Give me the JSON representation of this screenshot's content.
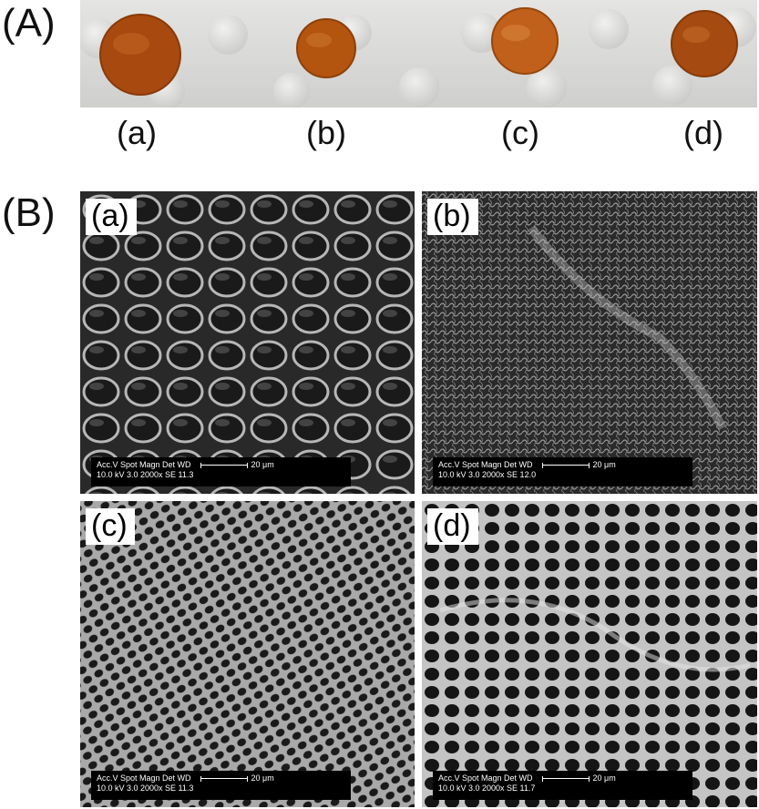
{
  "panel_A": {
    "label": "(A)",
    "samples": [
      {
        "label": "(a)",
        "color": "#a8490f"
      },
      {
        "label": "(b)",
        "color": "#b3540f"
      },
      {
        "label": "(c)",
        "color": "#c0601a"
      },
      {
        "label": "(d)",
        "color": "#a54a10"
      }
    ]
  },
  "panel_B": {
    "label": "(B)",
    "images": [
      {
        "label": "(a)",
        "header": "Acc.V  Spot Magn    Det  WD",
        "values": "10.0 kV 3.0  2000x    SE   11.3",
        "scale": "20 μm"
      },
      {
        "label": "(b)",
        "header": "Acc.V  Spot Magn    Det  WD",
        "values": "10.0 kV 3.0  2000x    SE   12.0",
        "scale": "20 μm"
      },
      {
        "label": "(c)",
        "header": "Acc.V  Spot Magn    Det  WD",
        "values": "10.0 kV 3.0  2000x    SE   11.3",
        "scale": "20 μm"
      },
      {
        "label": "(d)",
        "header": "Acc.V  Spot Magn    Det  WD",
        "values": "10.0 kV 3.0  2000x    SE   11.7",
        "scale": "20 μm"
      }
    ]
  }
}
